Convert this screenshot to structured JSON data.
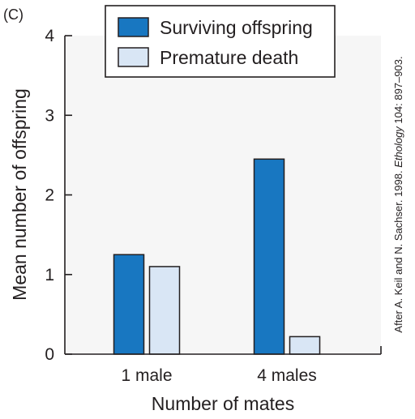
{
  "panel_label": "(C)",
  "source_note": {
    "before": "After A. Keil and N. Sachser. 1998. ",
    "journal": "Ethology",
    "after": " 104: 897–903."
  },
  "colors": {
    "surviving": "#1877c1",
    "premature": "#d9e6f5",
    "stroke": "#231f20",
    "plot_background": "#f6f6f6"
  },
  "chart_data": {
    "type": "bar",
    "categories": [
      "1 male",
      "4 males"
    ],
    "series": [
      {
        "name": "Surviving offspring",
        "values": [
          1.25,
          2.45
        ]
      },
      {
        "name": "Premature death",
        "values": [
          1.1,
          0.22
        ]
      }
    ],
    "xlabel": "Number of mates",
    "ylabel": "Mean number of offspring",
    "ylim": [
      0,
      4
    ],
    "yticks": [
      0,
      1,
      2,
      3,
      4
    ],
    "legend_position": "top-center",
    "grid": false
  }
}
